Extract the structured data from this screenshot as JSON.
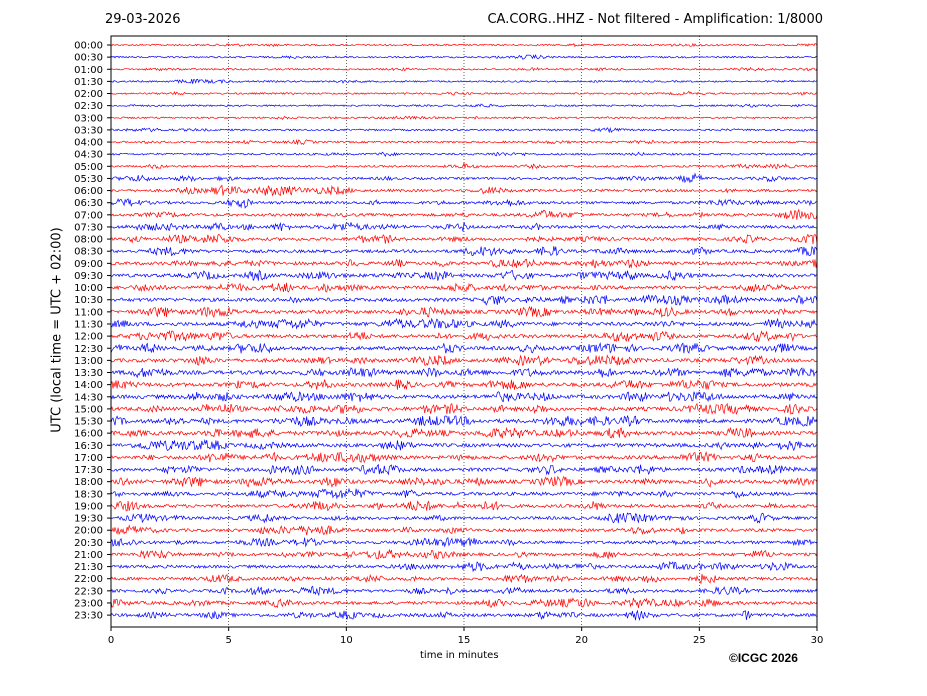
{
  "header": {
    "date": "29-03-2026",
    "title": "CA.CORG..HHZ - Not filtered - Amplification: 1/8000"
  },
  "footer": {
    "copyright": "©ICGC 2026"
  },
  "chart_data": {
    "type": "line",
    "title": "CA.CORG..HHZ - Not filtered - Amplification: 1/8000",
    "xlabel": "time in minutes",
    "ylabel": "UTC (local time = UTC + 02:00)",
    "xlim": [
      0,
      30
    ],
    "x_ticks": [
      "0",
      "5",
      "10",
      "15",
      "20",
      "25",
      "30"
    ],
    "y_ticks": [
      "00:00",
      "00:30",
      "01:00",
      "01:30",
      "02:00",
      "02:30",
      "03:00",
      "03:30",
      "04:00",
      "04:30",
      "05:00",
      "05:30",
      "06:00",
      "06:30",
      "07:00",
      "07:30",
      "08:00",
      "08:30",
      "09:00",
      "09:30",
      "10:00",
      "10:30",
      "11:00",
      "11:30",
      "12:00",
      "12:30",
      "13:00",
      "13:30",
      "14:00",
      "14:30",
      "15:00",
      "15:30",
      "16:00",
      "16:30",
      "17:00",
      "17:30",
      "18:00",
      "18:30",
      "19:00",
      "19:30",
      "20:00",
      "20:30",
      "21:00",
      "21:30",
      "22:00",
      "22:30",
      "23:00",
      "23:30"
    ],
    "trace_colors": [
      "#ff0000",
      "#0000ff"
    ],
    "grid": "vertical dotted",
    "trace_activity": [
      0.15,
      0.15,
      0.15,
      0.15,
      0.15,
      0.15,
      0.15,
      0.18,
      0.2,
      0.22,
      0.25,
      0.35,
      0.45,
      0.45,
      0.5,
      0.55,
      0.55,
      0.55,
      0.6,
      0.65,
      0.65,
      0.7,
      0.7,
      0.75,
      0.7,
      0.75,
      0.75,
      0.8,
      0.8,
      0.8,
      0.8,
      0.8,
      0.8,
      0.75,
      0.7,
      0.7,
      0.7,
      0.65,
      0.6,
      0.55,
      0.55,
      0.55,
      0.55,
      0.55,
      0.55,
      0.55,
      0.6,
      0.6
    ]
  }
}
